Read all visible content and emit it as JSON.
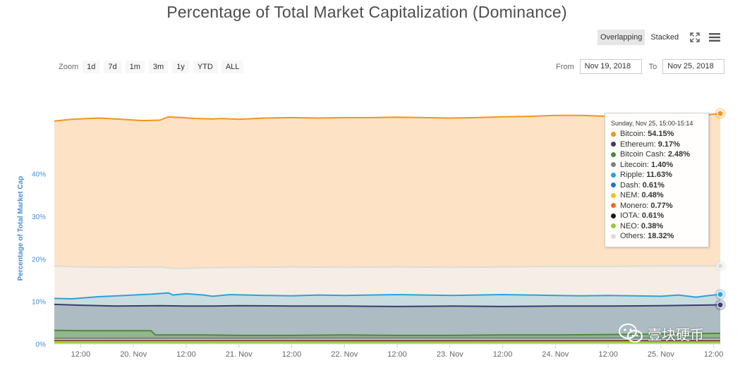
{
  "title": "Percentage of Total Market Capitalization (Dominance)",
  "view_toggle": {
    "overlapping": "Overlapping",
    "stacked": "Stacked",
    "active": "overlapping"
  },
  "icons": {
    "fullscreen": "fullscreen-icon",
    "menu": "hamburger-menu-icon"
  },
  "zoom": {
    "label": "Zoom",
    "buttons": [
      "1d",
      "7d",
      "1m",
      "3m",
      "1y",
      "YTD",
      "ALL"
    ]
  },
  "range": {
    "from_label": "From",
    "from_value": "Nov 19, 2018",
    "to_label": "To",
    "to_value": "Nov 25, 2018"
  },
  "tooltip": {
    "header": "Sunday, Nov 25, 15:00-15:14",
    "rows": [
      {
        "name": "Bitcoin",
        "value": "54.15%",
        "color": "#f7931a"
      },
      {
        "name": "Ethereum",
        "value": "9.17%",
        "color": "#3c3c6d"
      },
      {
        "name": "Bitcoin Cash",
        "value": "2.48%",
        "color": "#4a8a3c"
      },
      {
        "name": "Litecoin",
        "value": "1.40%",
        "color": "#808080"
      },
      {
        "name": "Ripple",
        "value": "11.63%",
        "color": "#2ea1d8"
      },
      {
        "name": "Dash",
        "value": "0.61%",
        "color": "#1c75bc"
      },
      {
        "name": "NEM",
        "value": "0.48%",
        "color": "#f2c014"
      },
      {
        "name": "Monero",
        "value": "0.77%",
        "color": "#f26822"
      },
      {
        "name": "IOTA",
        "value": "0.61%",
        "color": "#1a1a1a"
      },
      {
        "name": "NEO",
        "value": "0.38%",
        "color": "#9acd32"
      },
      {
        "name": "Others",
        "value": "18.32%",
        "color": "#dcdcdc"
      }
    ]
  },
  "watermark": {
    "text": "壹块硬币"
  },
  "chart_data": {
    "type": "area",
    "title": "Percentage of Total Market Capitalization (Dominance)",
    "ylabel": "Percentage of Total Market Cap",
    "xlabel": "",
    "ylim": [
      0,
      55
    ],
    "y_ticks": [
      {
        "value": 0,
        "label": "0%"
      },
      {
        "value": 10,
        "label": "10%"
      },
      {
        "value": 20,
        "label": "20%"
      },
      {
        "value": 30,
        "label": "30%"
      },
      {
        "value": 40,
        "label": "40%"
      }
    ],
    "x_ticks": [
      {
        "value": 12,
        "label": "12:00"
      },
      {
        "value": 24,
        "label": "20. Nov"
      },
      {
        "value": 36,
        "label": "12:00"
      },
      {
        "value": 48,
        "label": "21. Nov"
      },
      {
        "value": 60,
        "label": "12:00"
      },
      {
        "value": 72,
        "label": "22. Nov"
      },
      {
        "value": 84,
        "label": "12:00"
      },
      {
        "value": 96,
        "label": "23. Nov"
      },
      {
        "value": 108,
        "label": "12:00"
      },
      {
        "value": 120,
        "label": "24. Nov"
      },
      {
        "value": 132,
        "label": "12:00"
      },
      {
        "value": 144,
        "label": "25. Nov"
      },
      {
        "value": 156,
        "label": "12:00"
      }
    ],
    "xlim": [
      6,
      157.5
    ],
    "grid": true,
    "legend": "tooltip",
    "series": [
      {
        "name": "Bitcoin",
        "color": "#f7931a",
        "fill": "#fde2c5",
        "x": [
          6,
          10,
          16,
          20,
          26,
          30,
          32,
          38,
          42,
          44,
          48,
          54,
          60,
          66,
          72,
          78,
          84,
          90,
          96,
          102,
          108,
          114,
          120,
          126,
          132,
          138,
          144,
          150,
          153,
          157.5
        ],
        "y": [
          52.4,
          52.8,
          53.1,
          52.9,
          52.5,
          52.6,
          53.4,
          53.0,
          52.9,
          53.0,
          52.8,
          53.1,
          53.2,
          53.1,
          53.2,
          53.2,
          53.3,
          53.2,
          53.1,
          53.2,
          53.4,
          53.5,
          53.7,
          53.7,
          53.5,
          53.6,
          53.7,
          53.3,
          53.7,
          54.15
        ]
      },
      {
        "name": "Others",
        "color": "#dcdcdc",
        "fill": "#f5efe8",
        "x": [
          6,
          12,
          20,
          30,
          34,
          40,
          48,
          60,
          72,
          84,
          96,
          108,
          120,
          132,
          144,
          157.5
        ],
        "y": [
          18.3,
          18.1,
          18.0,
          18.1,
          17.7,
          17.9,
          18.0,
          18.1,
          18.0,
          18.1,
          18.0,
          18.1,
          18.2,
          18.2,
          18.3,
          18.32
        ]
      },
      {
        "name": "Ripple",
        "color": "#2ea1d8",
        "fill": "#c4dbe0",
        "x": [
          6,
          10,
          16,
          22,
          28,
          32,
          33,
          36,
          40,
          42,
          46,
          54,
          60,
          66,
          72,
          78,
          84,
          90,
          96,
          102,
          108,
          114,
          120,
          126,
          132,
          138,
          144,
          148,
          152,
          155,
          157.5
        ],
        "y": [
          10.7,
          10.6,
          11.1,
          11.4,
          11.7,
          12.0,
          11.5,
          11.8,
          11.5,
          11.2,
          11.6,
          11.4,
          11.3,
          11.5,
          11.4,
          11.5,
          11.6,
          11.5,
          11.4,
          11.5,
          11.6,
          11.5,
          11.4,
          11.3,
          11.4,
          11.3,
          11.2,
          11.5,
          11.0,
          11.4,
          11.63
        ]
      },
      {
        "name": "Ethereum",
        "color": "#3c3c6d",
        "fill": "#a9b9bf",
        "x": [
          6,
          12,
          20,
          30,
          36,
          42,
          48,
          60,
          72,
          84,
          96,
          108,
          120,
          132,
          144,
          157.5
        ],
        "y": [
          9.3,
          9.1,
          8.9,
          9.0,
          8.9,
          8.9,
          9.0,
          8.9,
          8.9,
          8.8,
          8.9,
          8.8,
          8.9,
          8.9,
          9.0,
          9.17
        ]
      },
      {
        "name": "Bitcoin Cash",
        "color": "#4a8a3c",
        "fill": "#8fb58a",
        "x": [
          6,
          12,
          20,
          28,
          29,
          34,
          40,
          48,
          60,
          72,
          84,
          96,
          108,
          120,
          132,
          144,
          157.5
        ],
        "y": [
          3.2,
          3.1,
          3.1,
          3.1,
          2.1,
          2.1,
          2.1,
          2.0,
          2.0,
          2.1,
          2.0,
          2.0,
          2.1,
          2.1,
          2.2,
          2.3,
          2.48
        ]
      },
      {
        "name": "Litecoin",
        "color": "#808080",
        "fill": "#b4c3b4",
        "x": [
          6,
          40,
          80,
          120,
          157.5
        ],
        "y": [
          1.35,
          1.38,
          1.4,
          1.39,
          1.4
        ]
      },
      {
        "name": "Monero",
        "color": "#f26822",
        "fill": "#d7b08c",
        "x": [
          6,
          40,
          80,
          120,
          157.5
        ],
        "y": [
          0.8,
          0.79,
          0.78,
          0.77,
          0.77
        ]
      },
      {
        "name": "Dash",
        "color": "#1c75bc",
        "fill": "#9bb8c8",
        "x": [
          6,
          40,
          80,
          120,
          157.5
        ],
        "y": [
          0.63,
          0.62,
          0.62,
          0.61,
          0.61
        ]
      },
      {
        "name": "IOTA",
        "color": "#1a1a1a",
        "fill": "#6b6b6b",
        "x": [
          6,
          40,
          80,
          120,
          157.5
        ],
        "y": [
          0.6,
          0.6,
          0.61,
          0.61,
          0.61
        ]
      },
      {
        "name": "NEM",
        "color": "#f2c014",
        "fill": "#d8c26e",
        "x": [
          6,
          40,
          80,
          120,
          157.5
        ],
        "y": [
          0.5,
          0.49,
          0.48,
          0.48,
          0.48
        ]
      },
      {
        "name": "NEO",
        "color": "#9acd32",
        "fill": "#b9d67c",
        "x": [
          6,
          40,
          80,
          120,
          157.5
        ],
        "y": [
          0.4,
          0.39,
          0.38,
          0.38,
          0.38
        ]
      }
    ]
  }
}
